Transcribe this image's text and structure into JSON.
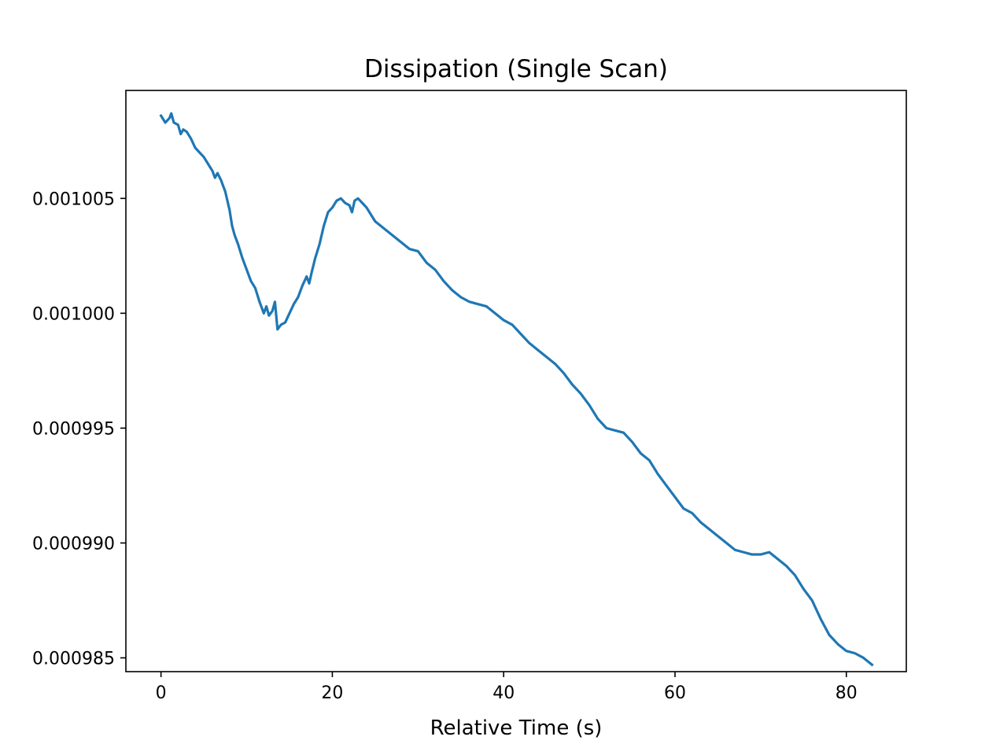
{
  "chart_data": {
    "type": "line",
    "title": "Dissipation (Single Scan)",
    "xlabel": "Relative Time (s)",
    "ylabel": "",
    "xlim": [
      -4.1,
      87
    ],
    "ylim": [
      0.0009844,
      0.0010097
    ],
    "grid": false,
    "legend": "none",
    "x_ticks": [
      {
        "value": 0,
        "label": "0"
      },
      {
        "value": 20,
        "label": "20"
      },
      {
        "value": 40,
        "label": "40"
      },
      {
        "value": 60,
        "label": "60"
      },
      {
        "value": 80,
        "label": "80"
      }
    ],
    "y_ticks": [
      {
        "value": 0.001005,
        "label": "0.001005"
      },
      {
        "value": 0.001,
        "label": "0.001000"
      },
      {
        "value": 0.000995,
        "label": "0.000995"
      },
      {
        "value": 0.00099,
        "label": "0.000990"
      },
      {
        "value": 0.000985,
        "label": "0.000985"
      }
    ],
    "series": [
      {
        "color": "#1f77b4",
        "x": [
          0,
          0.5,
          1,
          1.2,
          1.5,
          2,
          2.3,
          2.6,
          3,
          3.5,
          4,
          4.5,
          5,
          5.5,
          6,
          6.3,
          6.6,
          7,
          7.5,
          8,
          8.3,
          8.6,
          9,
          9.5,
          10,
          10.5,
          11,
          11.5,
          12,
          12.3,
          12.6,
          13,
          13.3,
          13.6,
          14,
          14.5,
          15,
          15.5,
          16,
          16.5,
          17,
          17.3,
          17.6,
          18,
          18.5,
          19,
          19.5,
          20,
          20.5,
          21,
          21.5,
          22,
          22.3,
          22.6,
          23,
          23.5,
          24,
          24.5,
          25,
          26,
          27,
          28,
          29,
          30,
          31,
          32,
          33,
          34,
          35,
          36,
          37,
          38,
          39,
          40,
          41,
          42,
          43,
          44,
          45,
          46,
          47,
          48,
          49,
          50,
          51,
          52,
          53,
          54,
          55,
          56,
          57,
          58,
          59,
          60,
          61,
          62,
          63,
          64,
          65,
          66,
          67,
          68,
          69,
          70,
          71,
          72,
          73,
          74,
          75,
          76,
          77,
          78,
          79,
          80,
          81,
          82,
          83
        ],
        "values": [
          0.0010086,
          0.0010083,
          0.0010085,
          0.0010087,
          0.0010083,
          0.0010082,
          0.0010078,
          0.001008,
          0.0010079,
          0.0010076,
          0.0010072,
          0.001007,
          0.0010068,
          0.0010065,
          0.0010062,
          0.0010059,
          0.0010061,
          0.0010058,
          0.0010053,
          0.0010045,
          0.0010038,
          0.0010034,
          0.001003,
          0.0010024,
          0.0010019,
          0.0010014,
          0.0010011,
          0.0010005,
          0.001,
          0.0010003,
          0.0009999,
          0.0010001,
          0.0010005,
          0.0009993,
          0.0009995,
          0.0009996,
          0.001,
          0.0010004,
          0.0010007,
          0.0010012,
          0.0010016,
          0.0010013,
          0.0010018,
          0.0010024,
          0.001003,
          0.0010038,
          0.0010044,
          0.0010046,
          0.0010049,
          0.001005,
          0.0010048,
          0.0010047,
          0.0010044,
          0.0010049,
          0.001005,
          0.0010048,
          0.0010046,
          0.0010043,
          0.001004,
          0.0010037,
          0.0010034,
          0.0010031,
          0.0010028,
          0.0010027,
          0.0010022,
          0.0010019,
          0.0010014,
          0.001001,
          0.0010007,
          0.0010005,
          0.0010004,
          0.0010003,
          0.001,
          0.0009997,
          0.0009995,
          0.0009991,
          0.0009987,
          0.0009984,
          0.0009981,
          0.0009978,
          0.0009974,
          0.0009969,
          0.0009965,
          0.000996,
          0.0009954,
          0.000995,
          0.0009949,
          0.0009948,
          0.0009944,
          0.0009939,
          0.0009936,
          0.000993,
          0.0009925,
          0.000992,
          0.0009915,
          0.0009913,
          0.0009909,
          0.0009906,
          0.0009903,
          0.00099,
          0.0009897,
          0.0009896,
          0.0009895,
          0.0009895,
          0.0009896,
          0.0009893,
          0.000989,
          0.0009886,
          0.000988,
          0.0009875,
          0.0009867,
          0.000986,
          0.0009856,
          0.0009853,
          0.0009852,
          0.000985,
          0.0009847
        ]
      }
    ]
  }
}
